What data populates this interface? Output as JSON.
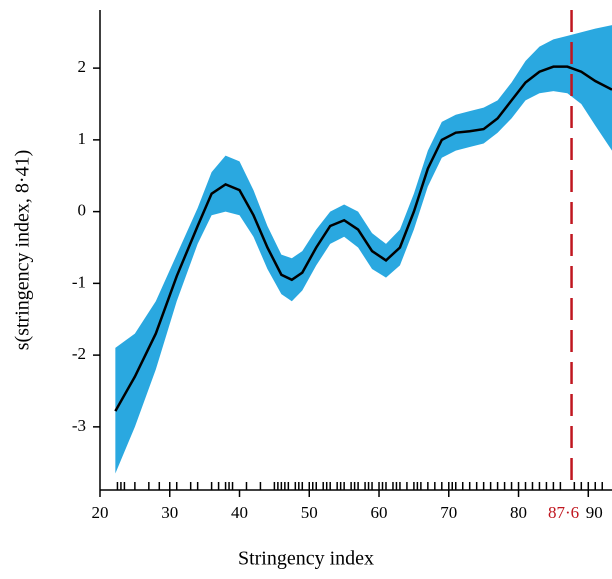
{
  "chart_data": {
    "type": "line",
    "xlabel": "Stringency index",
    "ylabel": "s(stringency index, 8·41)",
    "x": [
      22.2,
      25,
      28,
      31,
      34,
      36,
      38,
      40,
      42,
      44,
      46,
      47.5,
      49,
      51,
      53,
      55,
      57,
      59,
      61,
      63,
      65,
      67,
      69,
      71,
      73,
      75,
      77,
      79,
      81,
      83,
      85,
      87,
      89,
      91,
      93.4
    ],
    "series": [
      {
        "color": "#000000",
        "band_color": "#2aa8e0",
        "values": [
          -2.78,
          -2.3,
          -1.7,
          -0.9,
          -0.2,
          0.25,
          0.38,
          0.3,
          -0.05,
          -0.5,
          -0.88,
          -0.95,
          -0.85,
          -0.5,
          -0.2,
          -0.12,
          -0.25,
          -0.55,
          -0.68,
          -0.5,
          0.0,
          0.6,
          1.0,
          1.1,
          1.12,
          1.15,
          1.3,
          1.55,
          1.8,
          1.95,
          2.02,
          2.02,
          1.95,
          1.82,
          1.7
        ],
        "lower": [
          -3.65,
          -3.0,
          -2.2,
          -1.25,
          -0.45,
          -0.05,
          0.0,
          -0.05,
          -0.35,
          -0.8,
          -1.15,
          -1.25,
          -1.1,
          -0.75,
          -0.45,
          -0.35,
          -0.5,
          -0.8,
          -0.92,
          -0.75,
          -0.25,
          0.35,
          0.75,
          0.85,
          0.9,
          0.95,
          1.1,
          1.3,
          1.55,
          1.65,
          1.68,
          1.65,
          1.5,
          1.2,
          0.85
        ],
        "upper": [
          -1.9,
          -1.7,
          -1.25,
          -0.6,
          0.05,
          0.55,
          0.78,
          0.7,
          0.3,
          -0.2,
          -0.6,
          -0.65,
          -0.55,
          -0.25,
          0.0,
          0.1,
          0.0,
          -0.3,
          -0.45,
          -0.25,
          0.25,
          0.85,
          1.25,
          1.35,
          1.4,
          1.45,
          1.55,
          1.8,
          2.1,
          2.3,
          2.4,
          2.45,
          2.5,
          2.55,
          2.6
        ]
      }
    ],
    "rug": [
      22.5,
      23,
      23.5,
      25,
      27,
      28.5,
      30,
      31,
      33,
      34,
      36,
      37,
      38,
      38.5,
      39,
      41,
      43,
      45,
      45.5,
      46,
      46.5,
      47,
      48,
      48.5,
      49,
      50,
      50.5,
      51,
      52,
      52.5,
      53,
      54,
      54.5,
      55,
      56,
      56.5,
      57,
      58,
      58.5,
      59,
      60,
      60.5,
      61,
      62,
      62.5,
      63,
      64,
      65,
      65.5,
      66,
      67,
      68,
      69,
      70,
      70.5,
      71,
      72,
      73,
      74,
      75,
      76,
      77,
      78,
      79,
      80,
      81,
      82,
      83,
      84,
      85,
      86,
      88,
      89,
      90,
      91,
      92
    ],
    "vline": {
      "x": 87.6,
      "label": "87·6",
      "color": "#c0161f"
    },
    "xlim": [
      20,
      93.4
    ],
    "ylim": [
      -3.88,
      2.81
    ],
    "xticks": [
      20,
      30,
      40,
      50,
      60,
      70,
      80,
      90
    ],
    "yticks": [
      -3,
      -2,
      -1,
      0,
      1,
      2
    ]
  }
}
